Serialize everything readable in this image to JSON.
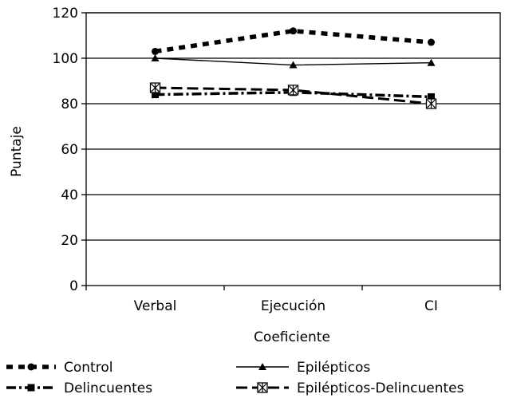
{
  "chart_data": {
    "type": "line",
    "title": "",
    "xlabel": "Coeficiente",
    "ylabel": "Puntaje",
    "categories": [
      "Verbal",
      "Ejecución",
      "CI"
    ],
    "ylim": [
      0,
      120
    ],
    "yticks": [
      0,
      20,
      40,
      60,
      80,
      100,
      120
    ],
    "grid": true,
    "legend_position": "bottom",
    "series": [
      {
        "name": "Control",
        "values": [
          103,
          112,
          107
        ],
        "marker": "circle",
        "line_style": "heavy-dotted",
        "color": "#000000"
      },
      {
        "name": "Epilépticos",
        "values": [
          100,
          97,
          98
        ],
        "marker": "triangle",
        "line_style": "solid",
        "color": "#000000"
      },
      {
        "name": "Delincuentes",
        "values": [
          84,
          85,
          83
        ],
        "marker": "square",
        "line_style": "dash-dot",
        "color": "#000000"
      },
      {
        "name": "Epilépticos-Delincuentes",
        "values": [
          87,
          86,
          80
        ],
        "marker": "asterisk-box",
        "line_style": "long-dash",
        "color": "#000000"
      }
    ]
  }
}
